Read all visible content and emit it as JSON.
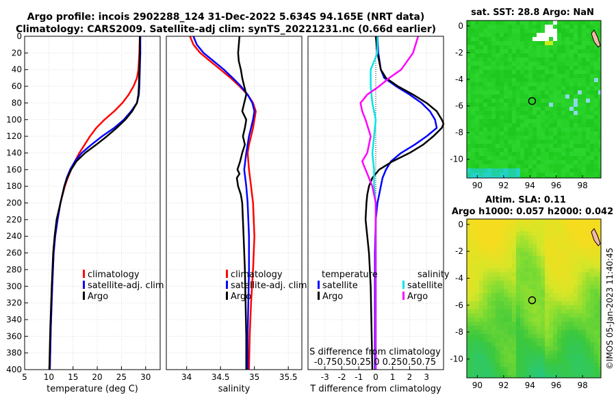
{
  "title_line1": "Argo profile: incois 2902288_124 31-Dec-2022 5.634S 94.165E (NRT data)",
  "title_line2": "Climatology: CARS2009. Satellite-adj clim: synTS_20221231.nc (0.66d earlier)",
  "credit": "©IMOS 05-Jan-2023 11:40:45",
  "colors": {
    "climatology": "#ff0000",
    "satellite": "#0000ff",
    "argo": "#000000",
    "sat_salinity": "#00e5e5",
    "argo_salinity": "#ff00ff",
    "grid": "#d9d9d9"
  },
  "chart_data": [
    {
      "id": "temperature",
      "type": "line",
      "xlabel": "temperature (deg C)",
      "ylabel": "",
      "xlim": [
        5,
        33
      ],
      "ylim": [
        400,
        0
      ],
      "xticks": [
        5,
        10,
        15,
        20,
        25,
        30
      ],
      "yticks": [
        0,
        20,
        40,
        60,
        80,
        100,
        120,
        140,
        160,
        180,
        200,
        220,
        240,
        260,
        280,
        300,
        320,
        340,
        360,
        380,
        400
      ],
      "legend": [
        "climatology",
        "satellite-adj. clim",
        "Argo"
      ],
      "series": [
        {
          "name": "climatology",
          "color": "#ff0000",
          "depth": [
            0,
            20,
            40,
            50,
            60,
            70,
            80,
            90,
            100,
            110,
            120,
            130,
            140,
            150,
            160,
            170,
            180,
            200,
            220,
            240,
            260,
            300,
            350,
            400
          ],
          "values": [
            28.8,
            28.7,
            28.5,
            28.2,
            27.5,
            26.5,
            25.2,
            23.5,
            21.5,
            19.8,
            18.5,
            17.4,
            16.3,
            15.4,
            14.6,
            13.9,
            13.3,
            12.4,
            11.8,
            11.3,
            11.0,
            10.7,
            10.4,
            10.2
          ]
        },
        {
          "name": "satellite-adj. clim",
          "color": "#0000ff",
          "depth": [
            0,
            20,
            40,
            60,
            70,
            80,
            90,
            100,
            110,
            120,
            130,
            140,
            150,
            160,
            170,
            180,
            200,
            220,
            240,
            260,
            300,
            350,
            400
          ],
          "values": [
            28.9,
            28.9,
            28.8,
            28.7,
            28.6,
            28.2,
            27.0,
            25.5,
            23.5,
            21.0,
            18.8,
            16.8,
            15.4,
            14.4,
            13.7,
            13.2,
            12.4,
            11.8,
            11.3,
            11.0,
            10.7,
            10.4,
            10.2
          ]
        },
        {
          "name": "Argo",
          "color": "#000000",
          "depth": [
            0,
            20,
            40,
            60,
            70,
            80,
            90,
            100,
            110,
            120,
            130,
            140,
            150,
            160,
            170,
            180,
            200,
            220,
            240,
            260,
            300,
            350,
            400
          ],
          "values": [
            28.8,
            28.8,
            28.7,
            28.6,
            28.5,
            28.2,
            27.2,
            25.8,
            24.0,
            22.0,
            19.8,
            17.5,
            15.7,
            14.6,
            13.8,
            13.2,
            12.4,
            11.6,
            11.2,
            10.9,
            10.6,
            10.3,
            10.1
          ]
        }
      ]
    },
    {
      "id": "salinity",
      "type": "line",
      "xlabel": "salinity",
      "ylabel": "",
      "xlim": [
        33.7,
        35.7
      ],
      "ylim": [
        400,
        0
      ],
      "xticks": [
        34,
        34.5,
        35,
        35.5
      ],
      "legend": [
        "climatology",
        "satellite-adj. clim",
        "Argo"
      ],
      "series": [
        {
          "name": "climatology",
          "color": "#ff0000",
          "depth": [
            0,
            10,
            20,
            30,
            40,
            50,
            60,
            70,
            80,
            90,
            100,
            110,
            120,
            130,
            140,
            160,
            180,
            200,
            240,
            280,
            320,
            360,
            400
          ],
          "values": [
            34.05,
            34.1,
            34.2,
            34.35,
            34.5,
            34.65,
            34.78,
            34.9,
            34.98,
            35.02,
            35.0,
            34.98,
            34.95,
            34.92,
            34.9,
            34.92,
            34.95,
            34.98,
            35.0,
            34.98,
            34.95,
            34.93,
            34.92
          ]
        },
        {
          "name": "satellite-adj. clim",
          "color": "#0000ff",
          "depth": [
            0,
            10,
            20,
            30,
            40,
            50,
            60,
            70,
            80,
            90,
            100,
            110,
            120,
            130,
            140,
            160,
            180,
            200,
            240,
            280,
            320,
            360,
            400
          ],
          "values": [
            34.1,
            34.15,
            34.25,
            34.4,
            34.55,
            34.68,
            34.8,
            34.9,
            34.97,
            35.0,
            34.98,
            34.95,
            34.92,
            34.9,
            34.88,
            34.85,
            34.88,
            34.9,
            34.92,
            34.92,
            34.91,
            34.9,
            34.9
          ]
        },
        {
          "name": "Argo",
          "color": "#000000",
          "depth": [
            0,
            10,
            20,
            30,
            40,
            50,
            60,
            70,
            80,
            90,
            100,
            110,
            120,
            130,
            140,
            150,
            160,
            165,
            170,
            180,
            190,
            200,
            240,
            280,
            320,
            360,
            400
          ],
          "values": [
            34.78,
            34.77,
            34.76,
            34.77,
            34.8,
            34.82,
            34.85,
            34.88,
            34.85,
            34.82,
            34.88,
            34.86,
            34.83,
            34.86,
            34.82,
            34.79,
            34.75,
            34.78,
            34.74,
            34.76,
            34.8,
            34.82,
            34.84,
            34.86,
            34.87,
            34.88,
            34.88
          ]
        }
      ]
    },
    {
      "id": "difference",
      "type": "line",
      "xlabel": "T difference from climatology",
      "xlabel_top": "S difference from climatology",
      "top_tick_labels": "-0.750.50.25 0  0.250.50.75",
      "xlim": [
        -4,
        4
      ],
      "ylim": [
        400,
        0
      ],
      "xticks": [
        -3,
        -2,
        -1,
        0,
        1,
        2,
        3
      ],
      "legend_groups": [
        {
          "heading": "temperature",
          "entries": [
            "satellite",
            "Argo"
          ]
        },
        {
          "heading": "salinity",
          "entries": [
            "satellite",
            "Argo"
          ]
        }
      ],
      "series": [
        {
          "name": "T satellite",
          "color": "#0000ff",
          "depth": [
            0,
            20,
            40,
            50,
            60,
            70,
            80,
            90,
            100,
            110,
            120,
            130,
            140,
            150,
            160,
            170,
            180,
            190,
            200,
            220,
            260,
            300,
            350,
            400
          ],
          "values": [
            0.1,
            0.15,
            0.3,
            0.5,
            1.2,
            2.0,
            2.7,
            3.2,
            3.5,
            3.6,
            3.0,
            2.3,
            1.5,
            0.9,
            0.6,
            0.4,
            0.3,
            0.2,
            0.1,
            0.0,
            -0.05,
            -0.05,
            -0.05,
            -0.05
          ]
        },
        {
          "name": "T Argo",
          "color": "#000000",
          "depth": [
            0,
            20,
            40,
            50,
            60,
            70,
            80,
            90,
            100,
            105,
            110,
            120,
            130,
            140,
            150,
            160,
            170,
            180,
            190,
            200,
            220,
            240,
            260,
            300,
            350,
            400
          ],
          "values": [
            0.0,
            0.1,
            0.3,
            0.6,
            1.3,
            2.2,
            3.0,
            3.6,
            3.9,
            4.0,
            3.9,
            3.4,
            2.8,
            2.0,
            1.0,
            0.2,
            -0.2,
            -0.4,
            -0.5,
            -0.55,
            -0.6,
            -0.5,
            -0.4,
            -0.3,
            -0.25,
            -0.2
          ]
        },
        {
          "name": "S satellite",
          "color": "#00e5e5",
          "depth": [
            0,
            20,
            40,
            60,
            80,
            100,
            120,
            140,
            160,
            180,
            200,
            240,
            300,
            350,
            400
          ],
          "values": [
            0.1,
            0.1,
            -0.3,
            -0.3,
            -0.2,
            0.0,
            -0.1,
            -0.2,
            -0.1,
            -0.1,
            0.0,
            0.0,
            0.0,
            0.0,
            0.0
          ]
        },
        {
          "name": "S Argo",
          "color": "#ff00ff",
          "depth": [
            0,
            20,
            40,
            50,
            60,
            70,
            80,
            90,
            100,
            120,
            140,
            150,
            160,
            170,
            180,
            200,
            240,
            300,
            350,
            400
          ],
          "values": [
            2.5,
            2.2,
            1.5,
            0.8,
            0.2,
            -0.5,
            -0.9,
            -0.8,
            -0.6,
            -0.3,
            -0.5,
            -0.8,
            -0.6,
            -0.4,
            -0.2,
            0.0,
            0.0,
            0.0,
            0.0,
            0.0
          ]
        }
      ]
    }
  ],
  "maps": [
    {
      "id": "sst-map",
      "title": "sat. SST: 28.8 Argo: NaN",
      "xticks": [
        90,
        92,
        94,
        96,
        98
      ],
      "yticks": [
        0,
        -2,
        -4,
        -6,
        -8,
        -10
      ],
      "argo_lon": 94.165,
      "argo_lat": -5.634
    },
    {
      "id": "sla-map",
      "title_line1": "Altim. SLA: 0.11",
      "title_line2": "Argo h1000: 0.057 h2000: 0.042",
      "xticks": [
        90,
        92,
        94,
        96,
        98
      ],
      "yticks": [
        0,
        -2,
        -4,
        -6,
        -8,
        -10
      ],
      "argo_lon": 94.165,
      "argo_lat": -5.634
    }
  ]
}
